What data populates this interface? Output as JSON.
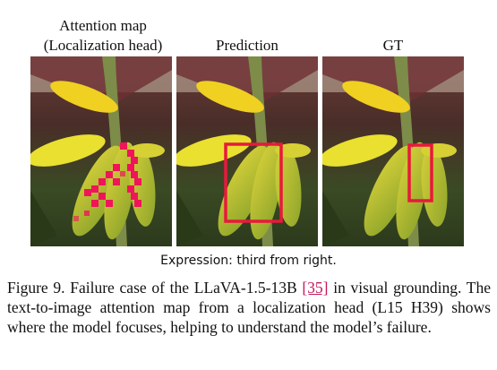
{
  "panels": [
    {
      "title_line1": "Attention map",
      "title_line2": "(Localization head)"
    },
    {
      "title_line1": "Prediction",
      "title_line2": ""
    },
    {
      "title_line1": "GT",
      "title_line2": ""
    }
  ],
  "expression": "Expression: third from right.",
  "caption": {
    "figure_label": "Figure 9.",
    "text_before": "Failure case of the LLaVA-1.5-13B",
    "citation": "[35]",
    "text_after": "in visual grounding. The text-to-image attention map from a localization head (L15 H39) shows where the model focuses, helping to understand the model’s failure."
  },
  "colors": {
    "box": "#e8193c",
    "attention": "#f0155a"
  }
}
